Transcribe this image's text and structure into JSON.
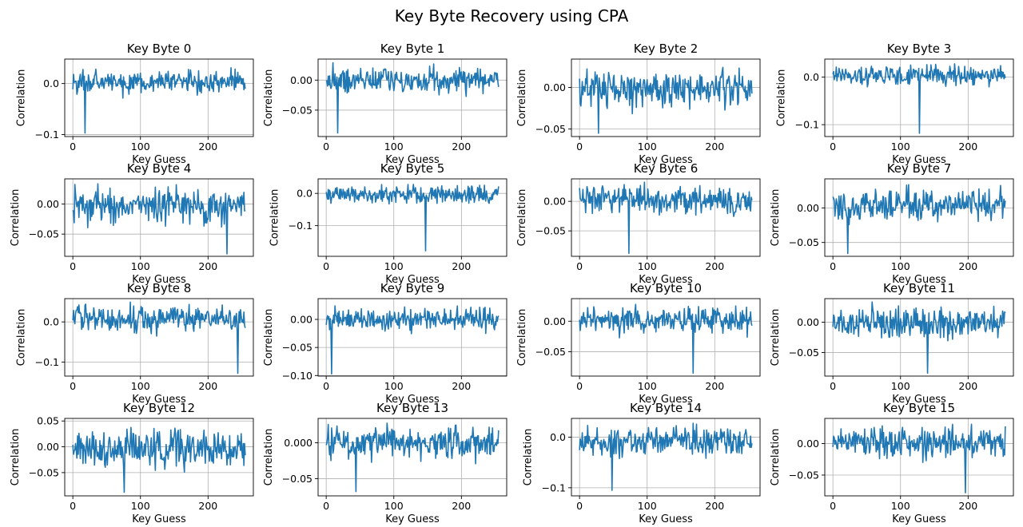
{
  "figure": {
    "title": "Key Byte Recovery using CPA"
  },
  "chart_data": [
    {
      "type": "line",
      "title": "Key Byte 0",
      "xlabel": "Key Guess",
      "ylabel": "Correlation",
      "xlim": [
        -12,
        267
      ],
      "ylim": [
        -0.104,
        0.048
      ],
      "xticks": [
        0,
        100,
        200
      ],
      "yticks": [
        0.0,
        -0.1
      ],
      "ytick_labels": [
        "0.0",
        "−0.1"
      ],
      "grid": true,
      "line_color": "#1f77b4",
      "x_range": [
        0,
        255
      ],
      "min_at": 18,
      "min_value": -0.097,
      "y_low": -0.032,
      "y_high": 0.038
    },
    {
      "type": "line",
      "title": "Key Byte 1",
      "xlabel": "Key Guess",
      "ylabel": "Correlation",
      "xlim": [
        -12,
        267
      ],
      "ylim": [
        -0.094,
        0.035
      ],
      "xticks": [
        0,
        100,
        200
      ],
      "yticks": [
        0.0,
        -0.05
      ],
      "ytick_labels": [
        "0.00",
        "−0.05"
      ],
      "grid": true,
      "line_color": "#1f77b4",
      "x_range": [
        0,
        255
      ],
      "min_at": 17,
      "min_value": -0.088,
      "y_low": -0.03,
      "y_high": 0.03
    },
    {
      "type": "line",
      "title": "Key Byte 2",
      "xlabel": "Key Guess",
      "ylabel": "Correlation",
      "xlim": [
        -12,
        267
      ],
      "ylim": [
        -0.059,
        0.034
      ],
      "xticks": [
        0,
        100,
        200
      ],
      "yticks": [
        0.0,
        -0.05
      ],
      "ytick_labels": [
        "0.00",
        "−0.05"
      ],
      "grid": true,
      "line_color": "#1f77b4",
      "x_range": [
        0,
        255
      ],
      "min_at": 28,
      "min_value": -0.055,
      "y_low": -0.033,
      "y_high": 0.03
    },
    {
      "type": "line",
      "title": "Key Byte 3",
      "xlabel": "Key Guess",
      "ylabel": "Correlation",
      "xlim": [
        -12,
        267
      ],
      "ylim": [
        -0.125,
        0.038
      ],
      "xticks": [
        0,
        100,
        200
      ],
      "yticks": [
        0.0,
        -0.1
      ],
      "ytick_labels": [
        "0.0",
        "−0.1"
      ],
      "grid": true,
      "line_color": "#1f77b4",
      "x_range": [
        0,
        255
      ],
      "min_at": 128,
      "min_value": -0.118,
      "y_low": -0.025,
      "y_high": 0.032
    },
    {
      "type": "line",
      "title": "Key Byte 4",
      "xlabel": "Key Guess",
      "ylabel": "Correlation",
      "xlim": [
        -12,
        267
      ],
      "ylim": [
        -0.087,
        0.042
      ],
      "xticks": [
        0,
        100,
        200
      ],
      "yticks": [
        0.0,
        -0.05
      ],
      "ytick_labels": [
        "0.00",
        "−0.05"
      ],
      "grid": true,
      "line_color": "#1f77b4",
      "x_range": [
        0,
        255
      ],
      "min_at": 228,
      "min_value": -0.083,
      "y_low": -0.045,
      "y_high": 0.038
    },
    {
      "type": "line",
      "title": "Key Byte 5",
      "xlabel": "Key Guess",
      "ylabel": "Correlation",
      "xlim": [
        -12,
        267
      ],
      "ylim": [
        -0.195,
        0.045
      ],
      "xticks": [
        0,
        100,
        200
      ],
      "yticks": [
        0.0,
        -0.1
      ],
      "ytick_labels": [
        "0.0",
        "−0.1"
      ],
      "grid": true,
      "line_color": "#1f77b4",
      "x_range": [
        0,
        255
      ],
      "min_at": 147,
      "min_value": -0.178,
      "y_low": -0.045,
      "y_high": 0.035
    },
    {
      "type": "line",
      "title": "Key Byte 6",
      "xlabel": "Key Guess",
      "ylabel": "Correlation",
      "xlim": [
        -12,
        267
      ],
      "ylim": [
        -0.093,
        0.038
      ],
      "xticks": [
        0,
        100,
        200
      ],
      "yticks": [
        0.0,
        -0.05
      ],
      "ytick_labels": [
        "0.00",
        "−0.05"
      ],
      "grid": true,
      "line_color": "#1f77b4",
      "x_range": [
        0,
        255
      ],
      "min_at": 73,
      "min_value": -0.088,
      "y_low": -0.032,
      "y_high": 0.035
    },
    {
      "type": "line",
      "title": "Key Byte 7",
      "xlabel": "Key Guess",
      "ylabel": "Correlation",
      "xlim": [
        -12,
        267
      ],
      "ylim": [
        -0.07,
        0.042
      ],
      "xticks": [
        0,
        100,
        200
      ],
      "yticks": [
        0.0,
        -0.05
      ],
      "ytick_labels": [
        "0.00",
        "−0.05"
      ],
      "grid": true,
      "line_color": "#1f77b4",
      "x_range": [
        0,
        255
      ],
      "min_at": 22,
      "min_value": -0.066,
      "y_low": -0.03,
      "y_high": 0.038
    },
    {
      "type": "line",
      "title": "Key Byte 8",
      "xlabel": "Key Guess",
      "ylabel": "Correlation",
      "xlim": [
        -12,
        267
      ],
      "ylim": [
        -0.135,
        0.058
      ],
      "xticks": [
        0,
        100,
        200
      ],
      "yticks": [
        0.0,
        -0.1
      ],
      "ytick_labels": [
        "0.0",
        "−0.1"
      ],
      "grid": true,
      "line_color": "#1f77b4",
      "x_range": [
        0,
        255
      ],
      "min_at": 244,
      "min_value": -0.128,
      "y_low": -0.04,
      "y_high": 0.055
    },
    {
      "type": "line",
      "title": "Key Byte 9",
      "xlabel": "Key Guess",
      "ylabel": "Correlation",
      "xlim": [
        -12,
        267
      ],
      "ylim": [
        -0.101,
        0.037
      ],
      "xticks": [
        0,
        100,
        200
      ],
      "yticks": [
        0.0,
        -0.05,
        -0.1
      ],
      "ytick_labels": [
        "0.00",
        "−0.05",
        "−0.10"
      ],
      "grid": true,
      "line_color": "#1f77b4",
      "x_range": [
        0,
        255
      ],
      "min_at": 8,
      "min_value": -0.097,
      "y_low": -0.028,
      "y_high": 0.03
    },
    {
      "type": "line",
      "title": "Key Byte 10",
      "xlabel": "Key Guess",
      "ylabel": "Correlation",
      "xlim": [
        -12,
        267
      ],
      "ylim": [
        -0.09,
        0.037
      ],
      "xticks": [
        0,
        100,
        200
      ],
      "yticks": [
        0.0,
        -0.05
      ],
      "ytick_labels": [
        "0.00",
        "−0.05"
      ],
      "grid": true,
      "line_color": "#1f77b4",
      "x_range": [
        0,
        255
      ],
      "min_at": 168,
      "min_value": -0.085,
      "y_low": -0.03,
      "y_high": 0.033
    },
    {
      "type": "line",
      "title": "Key Byte 11",
      "xlabel": "Key Guess",
      "ylabel": "Correlation",
      "xlim": [
        -12,
        267
      ],
      "ylim": [
        -0.089,
        0.039
      ],
      "xticks": [
        0,
        100,
        200
      ],
      "yticks": [
        0.0,
        -0.05
      ],
      "ytick_labels": [
        "0.00",
        "−0.05"
      ],
      "grid": true,
      "line_color": "#1f77b4",
      "x_range": [
        0,
        255
      ],
      "min_at": 140,
      "min_value": -0.084,
      "y_low": -0.035,
      "y_high": 0.037
    },
    {
      "type": "line",
      "title": "Key Byte 12",
      "xlabel": "Key Guess",
      "ylabel": "Correlation",
      "xlim": [
        -12,
        267
      ],
      "ylim": [
        -0.095,
        0.055
      ],
      "xticks": [
        0,
        100,
        200
      ],
      "yticks": [
        0.05,
        0.0,
        -0.05
      ],
      "ytick_labels": [
        "0.05",
        "0.00",
        "−0.05"
      ],
      "grid": true,
      "line_color": "#1f77b4",
      "x_range": [
        0,
        255
      ],
      "min_at": 76,
      "min_value": -0.088,
      "y_low": -0.055,
      "y_high": 0.048
    },
    {
      "type": "line",
      "title": "Key Byte 13",
      "xlabel": "Key Guess",
      "ylabel": "Correlation",
      "xlim": [
        -12,
        267
      ],
      "ylim": [
        -0.074,
        0.034
      ],
      "xticks": [
        0,
        100,
        200
      ],
      "yticks": [
        0.0,
        -0.05
      ],
      "ytick_labels": [
        "0.000",
        "−0.05"
      ],
      "grid": true,
      "line_color": "#1f77b4",
      "x_range": [
        0,
        255
      ],
      "min_at": 44,
      "min_value": -0.068,
      "y_low": -0.03,
      "y_high": 0.03
    },
    {
      "type": "line",
      "title": "Key Byte 14",
      "xlabel": "Key Guess",
      "ylabel": "Correlation",
      "xlim": [
        -12,
        267
      ],
      "ylim": [
        -0.116,
        0.037
      ],
      "xticks": [
        0,
        100,
        200
      ],
      "yticks": [
        0.0,
        -0.1
      ],
      "ytick_labels": [
        "0.0",
        "−0.1"
      ],
      "grid": true,
      "line_color": "#1f77b4",
      "x_range": [
        0,
        255
      ],
      "min_at": 48,
      "min_value": -0.105,
      "y_low": -0.05,
      "y_high": 0.032
    },
    {
      "type": "line",
      "title": "Key Byte 15",
      "xlabel": "Key Guess",
      "ylabel": "Correlation",
      "xlim": [
        -12,
        267
      ],
      "ylim": [
        -0.083,
        0.04
      ],
      "xticks": [
        0,
        100,
        200
      ],
      "yticks": [
        0.0,
        -0.05
      ],
      "ytick_labels": [
        "0.00",
        "−0.05"
      ],
      "grid": true,
      "line_color": "#1f77b4",
      "x_range": [
        0,
        255
      ],
      "min_at": 196,
      "min_value": -0.078,
      "y_low": -0.035,
      "y_high": 0.036
    }
  ]
}
